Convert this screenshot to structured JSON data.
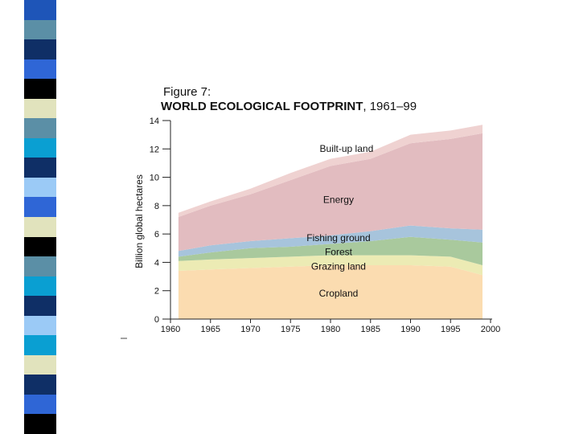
{
  "slide": {
    "strip_colors": [
      "#1e55b8",
      "#5b8fa6",
      "#0f2f66",
      "#2f66d6",
      "#000000",
      "#e1e3bd",
      "#5b8fa6",
      "#0a9fd2",
      "#0f2f66",
      "#9bcaf6",
      "#2f66d6",
      "#e1e3bd",
      "#000000",
      "#5b8fa6",
      "#0a9fd2",
      "#0f2f66",
      "#9bcaf6",
      "#0a9fd2",
      "#e1e3bd",
      "#0f2f66",
      "#2f66d6",
      "#000000"
    ]
  },
  "chart_data": {
    "type": "area",
    "stacked": true,
    "figure_number": "Figure 7:",
    "title": "WORLD ECOLOGICAL FOOTPRINT",
    "title_years": ", 1961–99",
    "xlabel": "",
    "ylabel": "Billion global hectares",
    "xlim": [
      1960,
      2000
    ],
    "ylim": [
      0,
      14
    ],
    "x_ticks": [
      1960,
      1965,
      1970,
      1975,
      1980,
      1985,
      1990,
      1995,
      2000
    ],
    "y_ticks": [
      0,
      2,
      4,
      6,
      8,
      10,
      12,
      14
    ],
    "grid": false,
    "x": [
      1961,
      1965,
      1970,
      1975,
      1980,
      1985,
      1990,
      1995,
      1999
    ],
    "series": [
      {
        "name": "Cropland",
        "color": "#fbdcb0",
        "values": [
          3.4,
          3.5,
          3.6,
          3.7,
          3.8,
          3.8,
          3.8,
          3.7,
          3.1
        ]
      },
      {
        "name": "Grazing land",
        "color": "#ecebb4",
        "values": [
          0.7,
          0.7,
          0.7,
          0.7,
          0.7,
          0.7,
          0.7,
          0.7,
          0.7
        ]
      },
      {
        "name": "Forest",
        "color": "#a9c99d",
        "values": [
          0.3,
          0.5,
          0.7,
          0.7,
          0.8,
          1.0,
          1.3,
          1.2,
          1.6
        ]
      },
      {
        "name": "Fishing ground",
        "color": "#a7c4dc",
        "values": [
          0.4,
          0.5,
          0.5,
          0.6,
          0.6,
          0.7,
          0.8,
          0.8,
          0.9
        ]
      },
      {
        "name": "Energy",
        "color": "#e2bcc0",
        "values": [
          2.4,
          2.8,
          3.3,
          4.1,
          4.9,
          5.1,
          5.8,
          6.3,
          6.8
        ]
      },
      {
        "name": "Built-up land",
        "color": "#efd2d1",
        "values": [
          0.3,
          0.3,
          0.4,
          0.5,
          0.5,
          0.5,
          0.6,
          0.6,
          0.6
        ]
      }
    ],
    "labels": [
      {
        "text": "Built-up land",
        "x": 1982,
        "y": 11.8
      },
      {
        "text": "Energy",
        "x": 1981,
        "y": 8.2
      },
      {
        "text": "Fishing ground",
        "x": 1981,
        "y": 5.5
      },
      {
        "text": "Forest",
        "x": 1981,
        "y": 4.5
      },
      {
        "text": "Grazing land",
        "x": 1981,
        "y": 3.5
      },
      {
        "text": "Cropland",
        "x": 1981,
        "y": 1.6
      }
    ]
  }
}
